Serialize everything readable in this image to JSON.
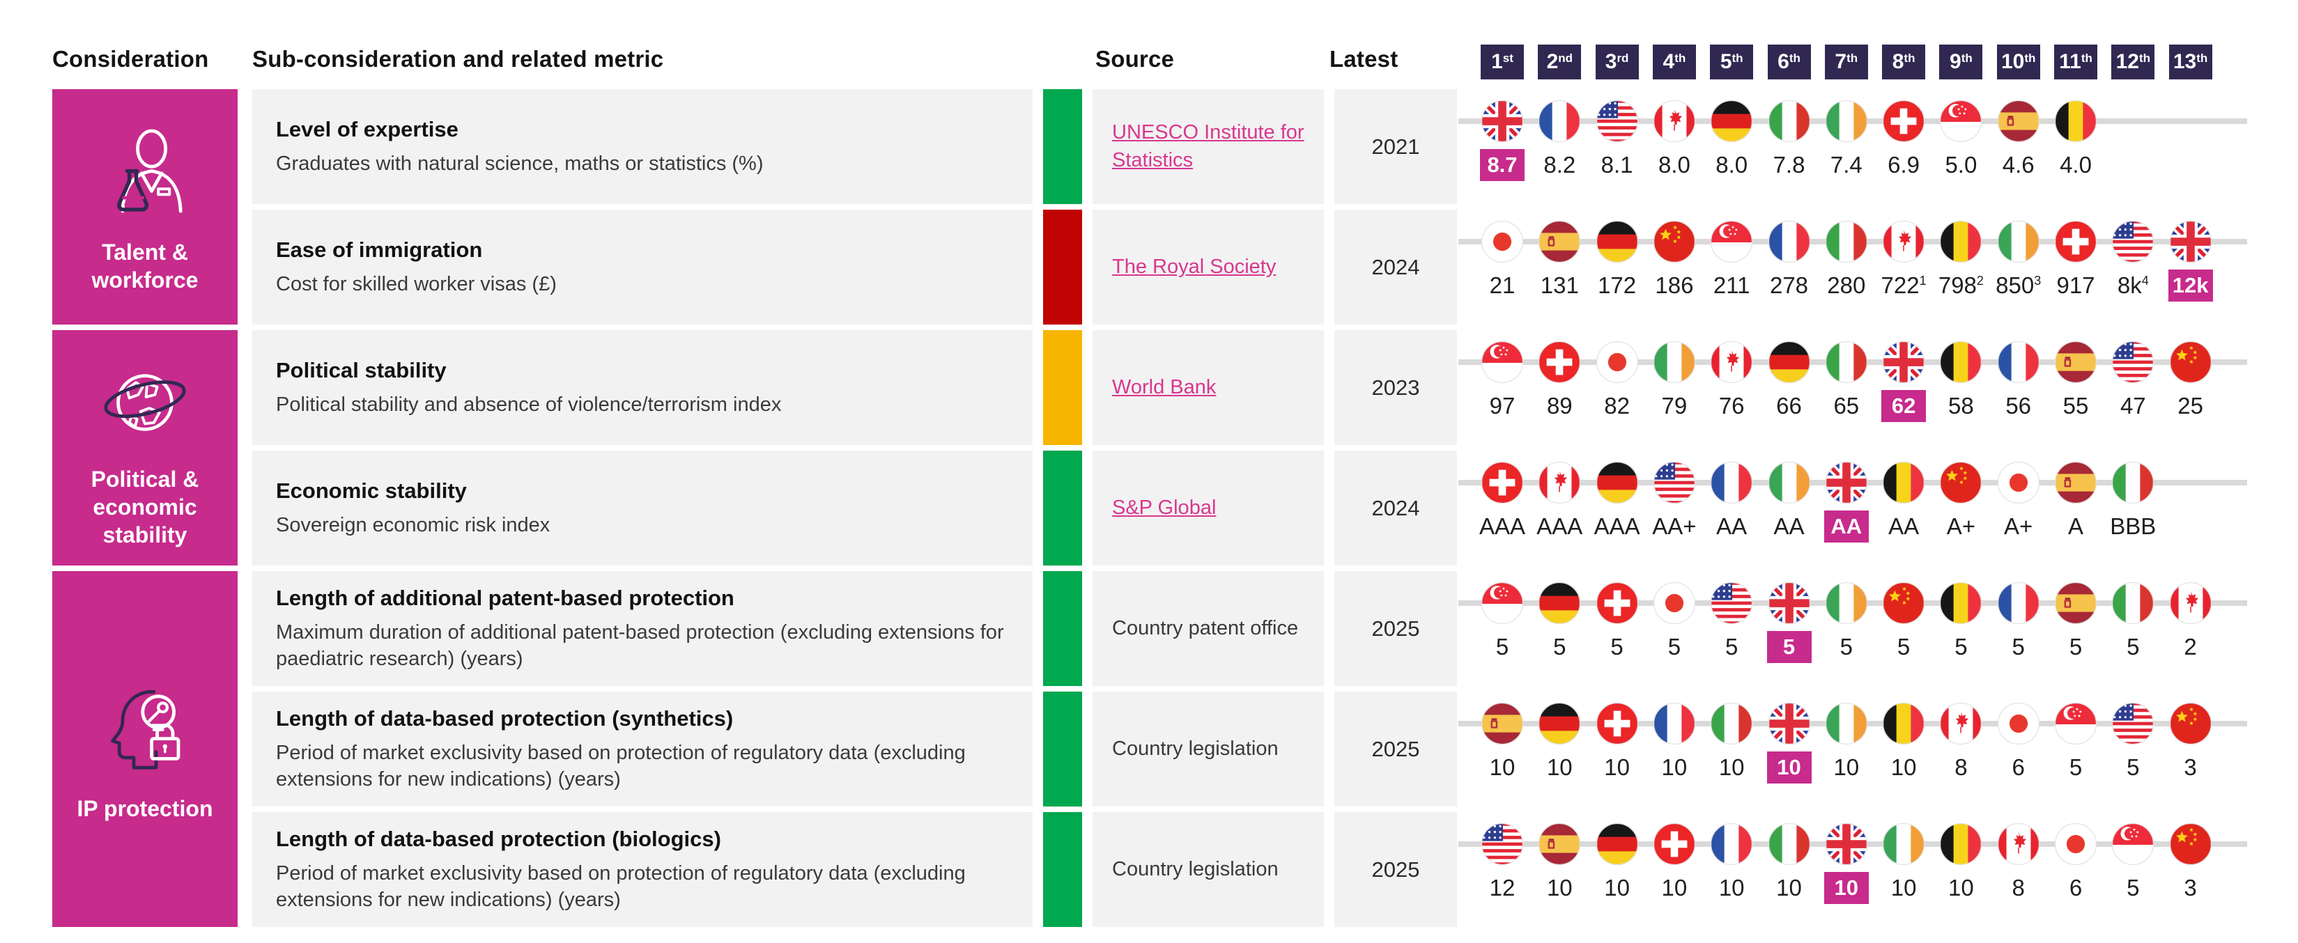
{
  "colors": {
    "magenta": "#c72b8c",
    "badge_navy": "#312852",
    "row_background": "#f2f2f2",
    "rank_line_gray": "#d9d9d9",
    "link_pink": "#d9368f",
    "status": {
      "green": "#00a84f",
      "red": "#c00404",
      "amber": "#f7b500"
    }
  },
  "header": {
    "consideration": "Consideration",
    "sub_consideration": "Sub-consideration and related metric",
    "source": "Source",
    "latest": "Latest",
    "ranks": [
      {
        "num": "1",
        "suffix": "st"
      },
      {
        "num": "2",
        "suffix": "nd"
      },
      {
        "num": "3",
        "suffix": "rd"
      },
      {
        "num": "4",
        "suffix": "th"
      },
      {
        "num": "5",
        "suffix": "th"
      },
      {
        "num": "6",
        "suffix": "th"
      },
      {
        "num": "7",
        "suffix": "th"
      },
      {
        "num": "8",
        "suffix": "th"
      },
      {
        "num": "9",
        "suffix": "th"
      },
      {
        "num": "10",
        "suffix": "th"
      },
      {
        "num": "11",
        "suffix": "th"
      },
      {
        "num": "12",
        "suffix": "th"
      },
      {
        "num": "13",
        "suffix": "th"
      }
    ]
  },
  "groups": [
    {
      "label": "Talent & workforce",
      "icon": "scientist-flask-icon",
      "row_start": 0,
      "row_count": 2
    },
    {
      "label": "Political & economic stability",
      "icon": "globe-orbit-icon",
      "row_start": 2,
      "row_count": 2
    },
    {
      "label": "IP protection",
      "icon": "head-bulb-lock-icon",
      "row_start": 4,
      "row_count": 3
    }
  ],
  "chart_data": {
    "type": "table",
    "title": "Country rankings by consideration and metric (1st to 13th)",
    "rank_labels": [
      "1st",
      "2nd",
      "3rd",
      "4th",
      "5th",
      "6th",
      "7th",
      "8th",
      "9th",
      "10th",
      "11th",
      "12th",
      "13th"
    ],
    "highlight_country": "uk",
    "rows": [
      {
        "title": "Level of expertise",
        "description": "Graduates with natural science, maths or statistics (%)",
        "status": "green",
        "source": {
          "text": "UNESCO Institute for Statistics",
          "link": true
        },
        "latest": "2021",
        "ranking": [
          {
            "flag": "uk",
            "value": "8.7",
            "highlight": true
          },
          {
            "flag": "france",
            "value": "8.2"
          },
          {
            "flag": "usa",
            "value": "8.1"
          },
          {
            "flag": "canada",
            "value": "8.0"
          },
          {
            "flag": "germany",
            "value": "8.0"
          },
          {
            "flag": "italy",
            "value": "7.8"
          },
          {
            "flag": "ireland",
            "value": "7.4"
          },
          {
            "flag": "switzerland",
            "value": "6.9"
          },
          {
            "flag": "singapore",
            "value": "5.0"
          },
          {
            "flag": "spain",
            "value": "4.6"
          },
          {
            "flag": "belgium",
            "value": "4.0"
          }
        ]
      },
      {
        "title": "Ease of immigration",
        "description": "Cost for skilled worker visas (£)",
        "status": "red",
        "source": {
          "text": "The Royal Society",
          "link": true
        },
        "latest": "2024",
        "ranking": [
          {
            "flag": "japan",
            "value": "21"
          },
          {
            "flag": "spain",
            "value": "131"
          },
          {
            "flag": "germany",
            "value": "172"
          },
          {
            "flag": "china",
            "value": "186"
          },
          {
            "flag": "singapore",
            "value": "211"
          },
          {
            "flag": "france",
            "value": "278"
          },
          {
            "flag": "italy",
            "value": "280"
          },
          {
            "flag": "canada",
            "value": "722",
            "sup": "1"
          },
          {
            "flag": "belgium",
            "value": "798",
            "sup": "2"
          },
          {
            "flag": "ireland",
            "value": "850",
            "sup": "3"
          },
          {
            "flag": "switzerland",
            "value": "917"
          },
          {
            "flag": "usa",
            "value": "8k",
            "sup": "4"
          },
          {
            "flag": "uk",
            "value": "12k",
            "highlight": true
          }
        ]
      },
      {
        "title": "Political stability",
        "description": "Political stability and absence of violence/terrorism index",
        "status": "amber",
        "source": {
          "text": "World Bank",
          "link": true
        },
        "latest": "2023",
        "ranking": [
          {
            "flag": "singapore",
            "value": "97"
          },
          {
            "flag": "switzerland",
            "value": "89"
          },
          {
            "flag": "japan",
            "value": "82"
          },
          {
            "flag": "ireland",
            "value": "79"
          },
          {
            "flag": "canada",
            "value": "76"
          },
          {
            "flag": "germany",
            "value": "66"
          },
          {
            "flag": "italy",
            "value": "65"
          },
          {
            "flag": "uk",
            "value": "62",
            "highlight": true
          },
          {
            "flag": "belgium",
            "value": "58"
          },
          {
            "flag": "france",
            "value": "56"
          },
          {
            "flag": "spain",
            "value": "55"
          },
          {
            "flag": "usa",
            "value": "47"
          },
          {
            "flag": "china",
            "value": "25"
          }
        ]
      },
      {
        "title": "Economic stability",
        "description": "Sovereign economic risk index",
        "status": "green",
        "source": {
          "text": "S&P Global",
          "link": true
        },
        "latest": "2024",
        "ranking": [
          {
            "flag": "switzerland",
            "value": "AAA"
          },
          {
            "flag": "canada",
            "value": "AAA"
          },
          {
            "flag": "germany",
            "value": "AAA"
          },
          {
            "flag": "usa",
            "value": "AA+"
          },
          {
            "flag": "france",
            "value": "AA"
          },
          {
            "flag": "ireland",
            "value": "AA"
          },
          {
            "flag": "uk",
            "value": "AA",
            "highlight": true
          },
          {
            "flag": "belgium",
            "value": "AA"
          },
          {
            "flag": "china",
            "value": "A+"
          },
          {
            "flag": "japan",
            "value": "A+"
          },
          {
            "flag": "spain",
            "value": "A"
          },
          {
            "flag": "italy",
            "value": "BBB"
          }
        ]
      },
      {
        "title": "Length of additional patent-based protection",
        "description": "Maximum duration of additional patent-based protection (excluding extensions for paediatric research) (years)",
        "status": "green",
        "source": {
          "text": "Country patent office",
          "link": false
        },
        "latest": "2025",
        "ranking": [
          {
            "flag": "singapore",
            "value": "5"
          },
          {
            "flag": "germany",
            "value": "5"
          },
          {
            "flag": "switzerland",
            "value": "5"
          },
          {
            "flag": "japan",
            "value": "5"
          },
          {
            "flag": "usa",
            "value": "5"
          },
          {
            "flag": "uk",
            "value": "5",
            "highlight": true
          },
          {
            "flag": "ireland",
            "value": "5"
          },
          {
            "flag": "china",
            "value": "5"
          },
          {
            "flag": "belgium",
            "value": "5"
          },
          {
            "flag": "france",
            "value": "5"
          },
          {
            "flag": "spain",
            "value": "5"
          },
          {
            "flag": "italy",
            "value": "5"
          },
          {
            "flag": "canada",
            "value": "2"
          }
        ]
      },
      {
        "title": "Length of data-based protection (synthetics)",
        "description": "Period of market exclusivity based on protection of regulatory data (excluding extensions for new indications) (years)",
        "status": "green",
        "source": {
          "text": "Country legislation",
          "link": false
        },
        "latest": "2025",
        "ranking": [
          {
            "flag": "spain",
            "value": "10"
          },
          {
            "flag": "germany",
            "value": "10"
          },
          {
            "flag": "switzerland",
            "value": "10"
          },
          {
            "flag": "france",
            "value": "10"
          },
          {
            "flag": "italy",
            "value": "10"
          },
          {
            "flag": "uk",
            "value": "10",
            "highlight": true
          },
          {
            "flag": "ireland",
            "value": "10"
          },
          {
            "flag": "belgium",
            "value": "10"
          },
          {
            "flag": "canada",
            "value": "8"
          },
          {
            "flag": "japan",
            "value": "6"
          },
          {
            "flag": "singapore",
            "value": "5"
          },
          {
            "flag": "usa",
            "value": "5"
          },
          {
            "flag": "china",
            "value": "3"
          }
        ]
      },
      {
        "title": "Length of data-based protection (biologics)",
        "description": "Period of market exclusivity based on protection of regulatory data (excluding extensions for new indications) (years)",
        "status": "green",
        "source": {
          "text": "Country legislation",
          "link": false
        },
        "latest": "2025",
        "ranking": [
          {
            "flag": "usa",
            "value": "12"
          },
          {
            "flag": "spain",
            "value": "10"
          },
          {
            "flag": "germany",
            "value": "10"
          },
          {
            "flag": "switzerland",
            "value": "10"
          },
          {
            "flag": "france",
            "value": "10"
          },
          {
            "flag": "italy",
            "value": "10"
          },
          {
            "flag": "uk",
            "value": "10",
            "highlight": true
          },
          {
            "flag": "ireland",
            "value": "10"
          },
          {
            "flag": "belgium",
            "value": "10"
          },
          {
            "flag": "canada",
            "value": "8"
          },
          {
            "flag": "japan",
            "value": "6"
          },
          {
            "flag": "singapore",
            "value": "5"
          },
          {
            "flag": "china",
            "value": "3"
          }
        ]
      }
    ]
  }
}
